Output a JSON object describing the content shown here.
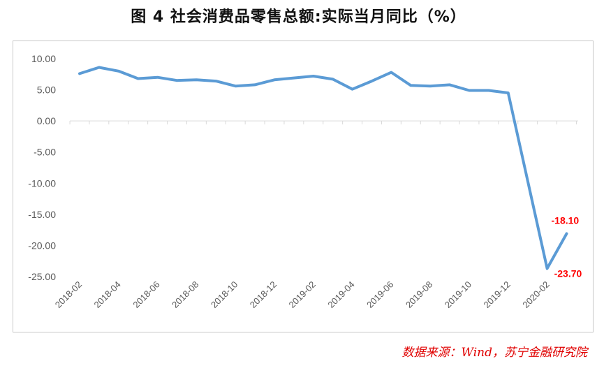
{
  "title": "图 4  社会消费品零售总额:实际当月同比（%）",
  "source": "数据来源：Wind，苏宁金融研究院",
  "colors": {
    "line": "#5b9bd5",
    "label": "#ff0000",
    "axis": "#d9d9d9",
    "text": "#595959"
  },
  "chart_data": {
    "type": "line",
    "title": "图 4  社会消费品零售总额:实际当月同比（%）",
    "xlabel": "",
    "ylabel": "",
    "ylim": [
      -25,
      10
    ],
    "yticks": [
      "10.00",
      "5.00",
      "0.00",
      "-5.00",
      "-10.00",
      "-15.00",
      "-20.00",
      "-25.00"
    ],
    "grid": false,
    "x": [
      "2018-02",
      "2018-03",
      "2018-04",
      "2018-05",
      "2018-06",
      "2018-07",
      "2018-08",
      "2018-09",
      "2018-10",
      "2018-11",
      "2018-12",
      "2019-01",
      "2019-02",
      "2019-03",
      "2019-04",
      "2019-05",
      "2019-06",
      "2019-07",
      "2019-08",
      "2019-09",
      "2019-10",
      "2019-11",
      "2019-12",
      "2020-01",
      "2020-02",
      "2020-03"
    ],
    "xtick_labels": [
      "2018-02",
      "2018-04",
      "2018-06",
      "2018-08",
      "2018-10",
      "2018-12",
      "2019-02",
      "2019-04",
      "2019-06",
      "2019-08",
      "2019-10",
      "2019-12",
      "2020-02"
    ],
    "series": [
      {
        "name": "",
        "values": [
          7.6,
          8.6,
          8.0,
          6.8,
          7.0,
          6.5,
          6.6,
          6.4,
          5.6,
          5.8,
          6.6,
          6.9,
          7.2,
          6.7,
          5.1,
          6.4,
          7.8,
          5.7,
          5.6,
          5.8,
          4.9,
          4.9,
          4.5,
          -9.6,
          -23.7,
          -18.1
        ]
      }
    ],
    "data_labels": [
      {
        "x": "2020-02",
        "text": "-23.70"
      },
      {
        "x": "2020-03",
        "text": "-18.10"
      }
    ]
  }
}
